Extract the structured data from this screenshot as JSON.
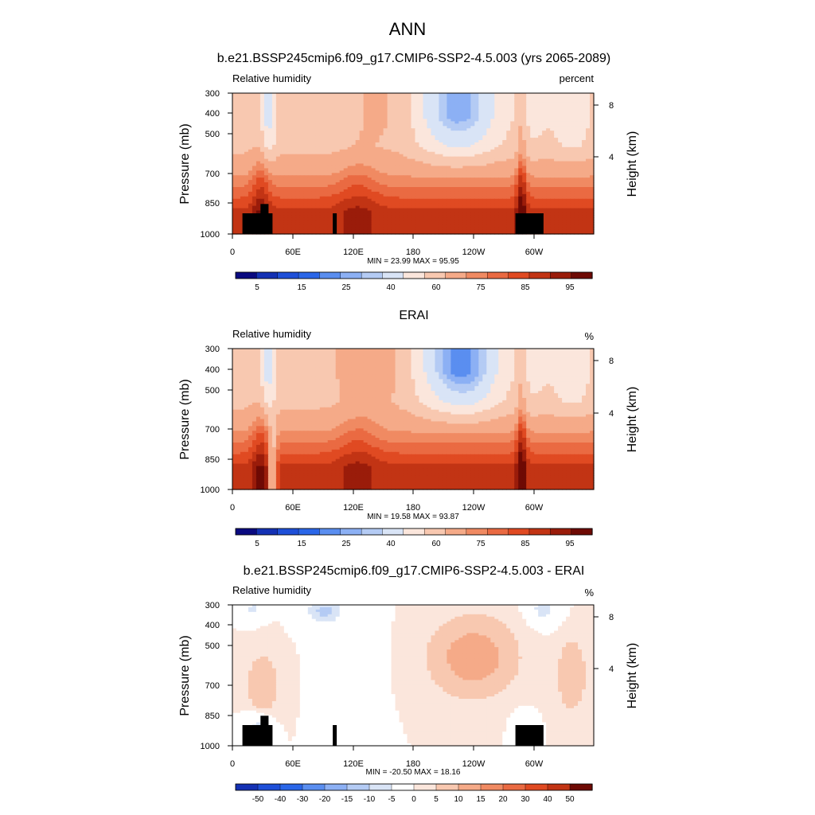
{
  "main_title": "ANN",
  "chart_data": [
    {
      "type": "heatmap",
      "title": "b.e21.BSSP245cmip6.f09_g17.CMIP6-SSP2-4.5.003 (yrs 2065-2089)",
      "left_label": "Relative humidity",
      "right_label": "percent",
      "ylabel": "Pressure (mb)",
      "ylabel_right": "Height (km)",
      "y_ticks": [
        300,
        400,
        500,
        700,
        850,
        1000
      ],
      "y_ticks_right": [
        8,
        4
      ],
      "x_ticks": [
        "0",
        "60E",
        "120E",
        "180",
        "120W",
        "60W"
      ],
      "xlim": [
        0,
        360
      ],
      "ylim": [
        1000,
        300
      ],
      "stats": "MIN =  23.99  MAX =  95.95",
      "colorbar_labels": [
        "5",
        "15",
        "25",
        "40",
        "60",
        "75",
        "85",
        "95"
      ],
      "colorbar_levels": [
        5,
        10,
        15,
        20,
        25,
        30,
        40,
        50,
        60,
        70,
        75,
        80,
        85,
        90,
        95
      ],
      "colormap": "sequential"
    },
    {
      "type": "heatmap",
      "title": "ERAI",
      "left_label": "Relative humidity",
      "right_label": "%",
      "ylabel": "Pressure (mb)",
      "ylabel_right": "Height (km)",
      "y_ticks": [
        300,
        400,
        500,
        700,
        850,
        1000
      ],
      "y_ticks_right": [
        8,
        4
      ],
      "x_ticks": [
        "0",
        "60E",
        "120E",
        "180",
        "120W",
        "60W"
      ],
      "xlim": [
        0,
        360
      ],
      "ylim": [
        1000,
        300
      ],
      "stats": "MIN =  19.58  MAX =  93.87",
      "colorbar_labels": [
        "5",
        "15",
        "25",
        "40",
        "60",
        "75",
        "85",
        "95"
      ],
      "colorbar_levels": [
        5,
        10,
        15,
        20,
        25,
        30,
        40,
        50,
        60,
        70,
        75,
        80,
        85,
        90,
        95
      ],
      "colormap": "sequential"
    },
    {
      "type": "heatmap",
      "title": "b.e21.BSSP245cmip6.f09_g17.CMIP6-SSP2-4.5.003 - ERAI",
      "left_label": "Relative humidity",
      "right_label": "%",
      "ylabel": "Pressure (mb)",
      "ylabel_right": "Height (km)",
      "y_ticks": [
        300,
        400,
        500,
        700,
        850,
        1000
      ],
      "y_ticks_right": [
        8,
        4
      ],
      "x_ticks": [
        "0",
        "60E",
        "120E",
        "180",
        "120W",
        "60W"
      ],
      "xlim": [
        0,
        360
      ],
      "ylim": [
        1000,
        300
      ],
      "stats": "MIN = -20.50  MAX =  18.16",
      "colorbar_labels": [
        "-50",
        "-40",
        "-30",
        "-20",
        "-15",
        "-10",
        "-5",
        "0",
        "5",
        "10",
        "15",
        "20",
        "30",
        "40",
        "50"
      ],
      "colormap": "diverging"
    }
  ],
  "colors": {
    "cold": [
      "#0a0a80",
      "#1431b4",
      "#1e4fd8",
      "#2a66e8",
      "#5a8ef0",
      "#8cb0f4",
      "#b4cbf4",
      "#d9e4f6"
    ],
    "warm": [
      "#fbe6dc",
      "#f8c8b0",
      "#f5aa88",
      "#f08a62",
      "#ea6a42",
      "#e04a22",
      "#c23414",
      "#9a1c0a",
      "#6e0a04"
    ],
    "topography": "#000000"
  }
}
